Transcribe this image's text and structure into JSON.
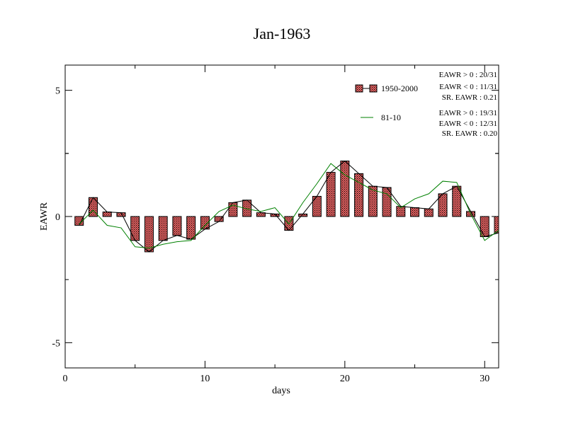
{
  "chart_data": {
    "type": "bar",
    "title": "Jan-1963",
    "xlabel": "days",
    "ylabel": "EAWR",
    "xlim": [
      0,
      31
    ],
    "ylim": [
      -6,
      6
    ],
    "x_ticks": [
      0,
      10,
      20,
      30
    ],
    "y_ticks": [
      -5,
      0,
      5
    ],
    "grid": false,
    "legend_position": "top-right",
    "x": [
      1,
      2,
      3,
      4,
      5,
      6,
      7,
      8,
      9,
      10,
      11,
      12,
      13,
      14,
      15,
      16,
      17,
      18,
      19,
      20,
      21,
      22,
      23,
      24,
      25,
      26,
      27,
      28,
      29,
      30,
      31
    ],
    "series": [
      {
        "name": "1950-2000",
        "kind": "bar",
        "color": "#e06060",
        "values": [
          -0.35,
          0.75,
          0.18,
          0.15,
          -0.95,
          -1.4,
          -0.95,
          -0.75,
          -0.9,
          -0.5,
          -0.2,
          0.55,
          0.65,
          0.15,
          0.1,
          -0.55,
          0.1,
          0.8,
          1.75,
          2.2,
          1.7,
          1.2,
          1.15,
          0.4,
          0.35,
          0.3,
          0.9,
          1.2,
          0.2,
          -0.8,
          -0.65
        ]
      },
      {
        "name": "81-10",
        "kind": "line",
        "color": "#008000",
        "values": [
          -0.3,
          0.25,
          -0.35,
          -0.45,
          -1.2,
          -1.25,
          -1.1,
          -1.0,
          -0.95,
          -0.35,
          0.2,
          0.45,
          0.3,
          0.2,
          0.35,
          -0.3,
          0.55,
          1.3,
          2.1,
          1.65,
          1.35,
          1.05,
          0.9,
          0.35,
          0.7,
          0.9,
          1.4,
          1.35,
          0.1,
          -0.95,
          -0.55
        ]
      }
    ],
    "stats": {
      "bars": [
        "EAWR > 0 : 20/31",
        "EAWR < 0 : 11/31",
        "SR. EAWR :  0.21"
      ],
      "line": [
        "EAWR > 0 : 19/31",
        "EAWR < 0 : 12/31",
        "SR. EAWR :  0.20"
      ]
    }
  }
}
